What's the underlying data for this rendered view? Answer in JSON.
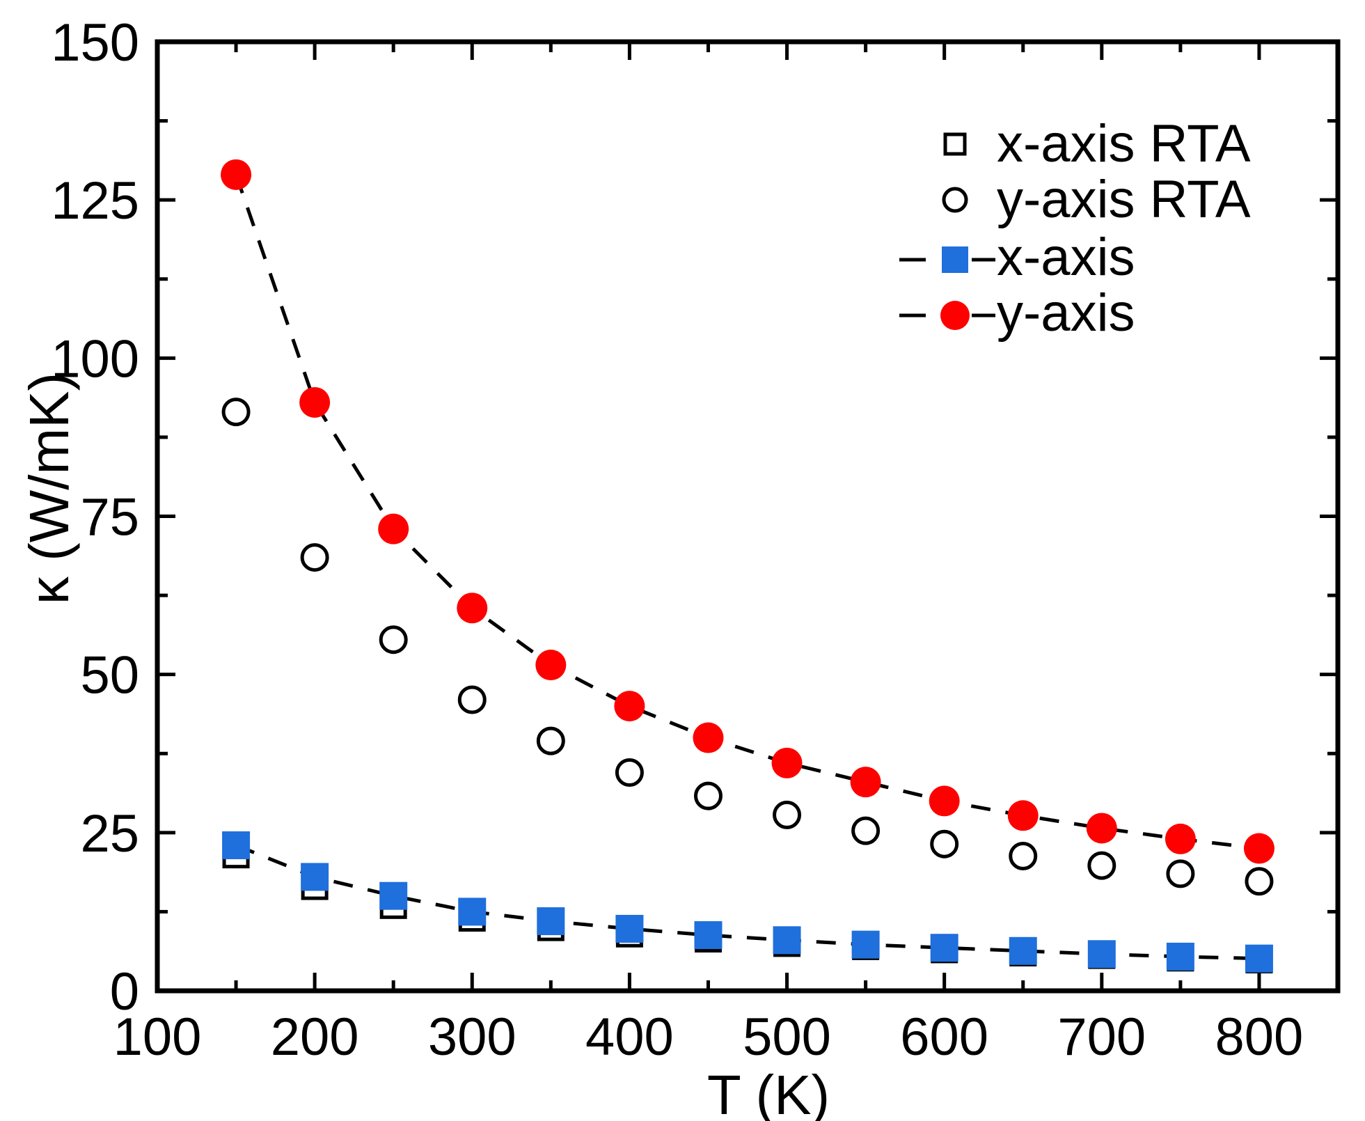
{
  "chart_data": {
    "type": "scatter",
    "xlabel": "T (K)",
    "ylabel": "κ (W/mK)",
    "xlim": [
      100,
      850
    ],
    "ylim": [
      0,
      150
    ],
    "xticks": [
      100,
      200,
      300,
      400,
      500,
      600,
      700,
      800
    ],
    "yticks": [
      0,
      25,
      50,
      75,
      100,
      125,
      150
    ],
    "grid": false,
    "legend_position": "top-right",
    "colors": {
      "x_axis": "#1f6fdc",
      "y_axis": "#ff0000",
      "rta": "#000000",
      "line": "#000000"
    },
    "series": [
      {
        "name": "x-axis RTA",
        "marker": "open-square",
        "line": false,
        "x": [
          150,
          200,
          250,
          300,
          350,
          400,
          450,
          500,
          550,
          600,
          650,
          700,
          750,
          800
        ],
        "y": [
          21.5,
          16.5,
          13.5,
          11.5,
          10,
          9,
          8.2,
          7.5,
          7,
          6.5,
          6,
          5.6,
          5.2,
          4.9
        ]
      },
      {
        "name": "y-axis RTA",
        "marker": "open-circle",
        "line": false,
        "x": [
          150,
          200,
          250,
          300,
          350,
          400,
          450,
          500,
          550,
          600,
          650,
          700,
          750,
          800
        ],
        "y": [
          91.5,
          68.5,
          55.5,
          46,
          39.5,
          34.5,
          30.8,
          27.8,
          25.3,
          23.2,
          21.3,
          19.8,
          18.5,
          17.3
        ]
      },
      {
        "name": "x-axis",
        "marker": "filled-square",
        "line": "dashed",
        "x": [
          150,
          200,
          250,
          300,
          350,
          400,
          450,
          500,
          550,
          600,
          650,
          700,
          750,
          800
        ],
        "y": [
          23,
          18,
          15,
          12.5,
          11,
          9.8,
          8.8,
          8,
          7.3,
          6.8,
          6.3,
          5.8,
          5.4,
          5.1
        ]
      },
      {
        "name": "y-axis",
        "marker": "filled-circle",
        "line": "dashed",
        "x": [
          150,
          200,
          250,
          300,
          350,
          400,
          450,
          500,
          550,
          600,
          650,
          700,
          750,
          800
        ],
        "y": [
          129,
          93,
          73,
          60.5,
          51.5,
          45,
          40,
          36,
          33,
          30,
          27.7,
          25.7,
          24,
          22.5
        ]
      }
    ]
  }
}
